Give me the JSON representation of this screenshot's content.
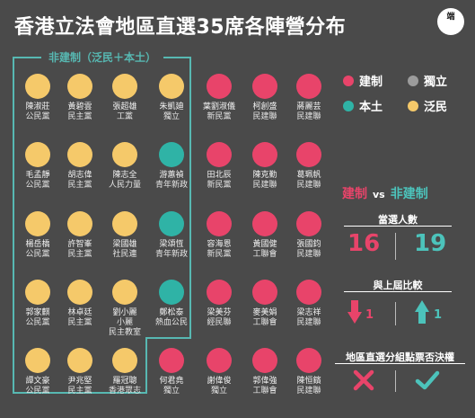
{
  "title": "香港立法會地區直選35席各陣營分布",
  "logo_text": "端",
  "non_establishment_label": "非建制（泛民＋本土）",
  "colors": {
    "establishment": "#e8446a",
    "independent": "#9c9c9c",
    "localist": "#2fb3a6",
    "pan_democrat": "#f5c96a"
  },
  "legend": [
    {
      "label": "建制",
      "type": "establishment"
    },
    {
      "label": "獨立",
      "type": "independent"
    },
    {
      "label": "本土",
      "type": "localist"
    },
    {
      "label": "泛民",
      "type": "pan_democrat"
    }
  ],
  "comparison": {
    "left": "建制",
    "vs": "vs",
    "right": "非建制",
    "seats_label": "當選人數",
    "establishment_seats": "16",
    "non_establishment_seats": "19",
    "change_label": "與上屆比較",
    "establishment_change": "1",
    "non_establishment_change": "1",
    "split_vote_label": "地區直選分組點票否決權"
  },
  "candidates": [
    {
      "name": "陳淑莊",
      "party": "公民黨",
      "type": "pan_democrat"
    },
    {
      "name": "黃碧雲",
      "party": "民主黨",
      "type": "pan_democrat"
    },
    {
      "name": "張超雄",
      "party": "工黨",
      "type": "pan_democrat"
    },
    {
      "name": "朱凱廸",
      "party": "獨立",
      "type": "pan_democrat"
    },
    {
      "name": "葉劉淑儀",
      "party": "新民黨",
      "type": "establishment"
    },
    {
      "name": "柯創盛",
      "party": "民建聯",
      "type": "establishment"
    },
    {
      "name": "蔣麗芸",
      "party": "民建聯",
      "type": "establishment"
    },
    {
      "name": "毛孟靜",
      "party": "公民黨",
      "type": "pan_democrat"
    },
    {
      "name": "胡志偉",
      "party": "民主黨",
      "type": "pan_democrat"
    },
    {
      "name": "陳志全",
      "party": "人民力量",
      "type": "pan_democrat"
    },
    {
      "name": "游蕙禎",
      "party": "青年新政",
      "type": "localist"
    },
    {
      "name": "田北辰",
      "party": "新民黨",
      "type": "establishment"
    },
    {
      "name": "陳克勤",
      "party": "民建聯",
      "type": "establishment"
    },
    {
      "name": "葛珮帆",
      "party": "民建聯",
      "type": "establishment"
    },
    {
      "name": "楊岳橋",
      "party": "公民黨",
      "type": "pan_democrat"
    },
    {
      "name": "許智峯",
      "party": "民主黨",
      "type": "pan_democrat"
    },
    {
      "name": "梁國雄",
      "party": "社民連",
      "type": "pan_democrat"
    },
    {
      "name": "梁頌恆",
      "party": "青年新政",
      "type": "localist"
    },
    {
      "name": "容海恩",
      "party": "新民黨",
      "type": "establishment"
    },
    {
      "name": "黃國健",
      "party": "工聯會",
      "type": "establishment"
    },
    {
      "name": "張國鈞",
      "party": "民建聯",
      "type": "establishment"
    },
    {
      "name": "郭家麒",
      "party": "公民黨",
      "type": "pan_democrat"
    },
    {
      "name": "林卓廷",
      "party": "民主黨",
      "type": "pan_democrat"
    },
    {
      "name": "劉小麗",
      "party": "小麗\n民主教室",
      "type": "pan_democrat"
    },
    {
      "name": "鄭松泰",
      "party": "熱血公民",
      "type": "localist"
    },
    {
      "name": "梁美芬",
      "party": "經民聯",
      "type": "establishment"
    },
    {
      "name": "麥美娟",
      "party": "工聯會",
      "type": "establishment"
    },
    {
      "name": "梁志祥",
      "party": "民建聯",
      "type": "establishment"
    },
    {
      "name": "譚文豪",
      "party": "公民黨",
      "type": "pan_democrat"
    },
    {
      "name": "尹兆堅",
      "party": "民主黨",
      "type": "pan_democrat"
    },
    {
      "name": "羅冠聰",
      "party": "香港眾志",
      "type": "pan_democrat"
    },
    {
      "name": "何君堯",
      "party": "獨立",
      "type": "establishment"
    },
    {
      "name": "謝偉俊",
      "party": "獨立",
      "type": "establishment"
    },
    {
      "name": "郭偉強",
      "party": "工聯會",
      "type": "establishment"
    },
    {
      "name": "陳恒鑌",
      "party": "民建聯",
      "type": "establishment"
    }
  ]
}
